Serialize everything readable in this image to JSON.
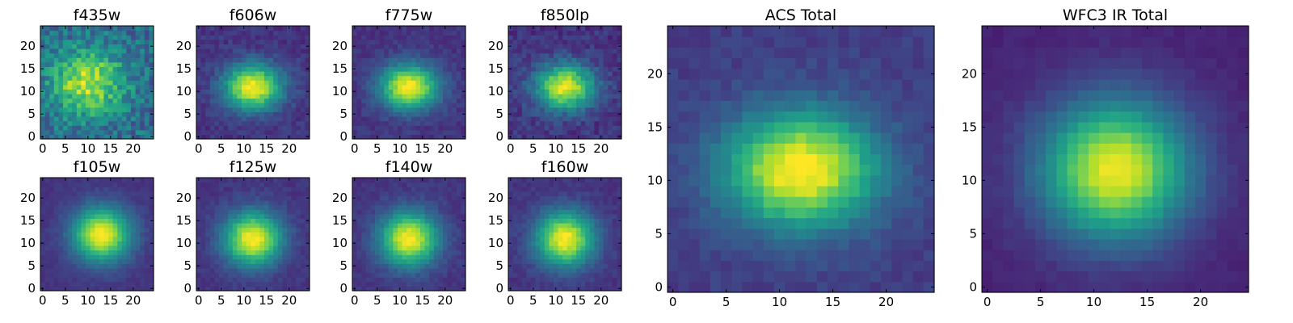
{
  "colormap": "viridis",
  "chart_data": [
    {
      "type": "heatmap",
      "title": "f435w",
      "grid_size": [
        25,
        25
      ],
      "peak": [
        10,
        12
      ],
      "sigma": [
        5.5,
        5.0
      ],
      "peak_value": 0.55,
      "background": 0.35,
      "noise": 0.3,
      "xlim": [
        0,
        24
      ],
      "ylim": [
        0,
        24
      ],
      "xticks": [
        "0",
        "5",
        "10",
        "15",
        "20"
      ],
      "yticks": [
        "0",
        "5",
        "10",
        "15",
        "20"
      ],
      "grid": false,
      "colors": "viridis"
    },
    {
      "type": "heatmap",
      "title": "f606w",
      "grid_size": [
        25,
        25
      ],
      "peak": [
        12,
        11
      ],
      "sigma": [
        4.5,
        3.5
      ],
      "peak_value": 0.85,
      "background": 0.15,
      "noise": 0.12,
      "xlim": [
        0,
        24
      ],
      "ylim": [
        0,
        24
      ],
      "xticks": [
        "0",
        "5",
        "10",
        "15",
        "20"
      ],
      "yticks": [
        "0",
        "5",
        "10",
        "15",
        "20"
      ],
      "grid": false,
      "colors": "viridis"
    },
    {
      "type": "heatmap",
      "title": "f775w",
      "grid_size": [
        25,
        25
      ],
      "peak": [
        12,
        11
      ],
      "sigma": [
        4.5,
        3.5
      ],
      "peak_value": 0.85,
      "background": 0.15,
      "noise": 0.1,
      "xlim": [
        0,
        24
      ],
      "ylim": [
        0,
        24
      ],
      "xticks": [
        "0",
        "5",
        "10",
        "15",
        "20"
      ],
      "yticks": [
        "0",
        "5",
        "10",
        "15",
        "20"
      ],
      "grid": false,
      "colors": "viridis"
    },
    {
      "type": "heatmap",
      "title": "f850lp",
      "grid_size": [
        25,
        25
      ],
      "peak": [
        12,
        11
      ],
      "sigma": [
        4.5,
        3.5
      ],
      "peak_value": 0.82,
      "background": 0.15,
      "noise": 0.15,
      "xlim": [
        0,
        24
      ],
      "ylim": [
        0,
        24
      ],
      "xticks": [
        "0",
        "5",
        "10",
        "15",
        "20"
      ],
      "yticks": [
        "0",
        "5",
        "10",
        "15",
        "20"
      ],
      "grid": false,
      "colors": "viridis"
    },
    {
      "type": "heatmap",
      "title": "f105w",
      "grid_size": [
        25,
        25
      ],
      "peak": [
        13,
        12
      ],
      "sigma": [
        4.5,
        4.2
      ],
      "peak_value": 0.85,
      "background": 0.15,
      "noise": 0.06,
      "xlim": [
        0,
        24
      ],
      "ylim": [
        0,
        24
      ],
      "xticks": [
        "0",
        "5",
        "10",
        "15",
        "20"
      ],
      "yticks": [
        "0",
        "5",
        "10",
        "15",
        "20"
      ],
      "grid": false,
      "colors": "viridis"
    },
    {
      "type": "heatmap",
      "title": "f125w",
      "grid_size": [
        25,
        25
      ],
      "peak": [
        12,
        11
      ],
      "sigma": [
        4.5,
        4.2
      ],
      "peak_value": 0.85,
      "background": 0.15,
      "noise": 0.08,
      "xlim": [
        0,
        24
      ],
      "ylim": [
        0,
        24
      ],
      "xticks": [
        "0",
        "5",
        "10",
        "15",
        "20"
      ],
      "yticks": [
        "0",
        "5",
        "10",
        "15",
        "20"
      ],
      "grid": false,
      "colors": "viridis"
    },
    {
      "type": "heatmap",
      "title": "f140w",
      "grid_size": [
        25,
        25
      ],
      "peak": [
        12,
        11
      ],
      "sigma": [
        4.5,
        4.2
      ],
      "peak_value": 0.85,
      "background": 0.15,
      "noise": 0.08,
      "xlim": [
        0,
        24
      ],
      "ylim": [
        0,
        24
      ],
      "xticks": [
        "0",
        "5",
        "10",
        "15",
        "20"
      ],
      "yticks": [
        "0",
        "5",
        "10",
        "15",
        "20"
      ],
      "grid": false,
      "colors": "viridis"
    },
    {
      "type": "heatmap",
      "title": "f160w",
      "grid_size": [
        25,
        25
      ],
      "peak": [
        12,
        11
      ],
      "sigma": [
        4.5,
        4.2
      ],
      "peak_value": 0.85,
      "background": 0.15,
      "noise": 0.08,
      "xlim": [
        0,
        24
      ],
      "ylim": [
        0,
        24
      ],
      "xticks": [
        "0",
        "5",
        "10",
        "15",
        "20"
      ],
      "yticks": [
        "0",
        "5",
        "10",
        "15",
        "20"
      ],
      "grid": false,
      "colors": "viridis"
    },
    {
      "type": "heatmap",
      "title": "ACS Total",
      "grid_size": [
        25,
        25
      ],
      "peak": [
        12,
        11
      ],
      "sigma": [
        5.0,
        3.8
      ],
      "peak_value": 0.85,
      "background": 0.18,
      "noise": 0.08,
      "xlim": [
        0,
        24
      ],
      "ylim": [
        0,
        24
      ],
      "xticks": [
        "0",
        "5",
        "10",
        "15",
        "20"
      ],
      "yticks": [
        "0",
        "5",
        "10",
        "15",
        "20"
      ],
      "grid": false,
      "colors": "viridis"
    },
    {
      "type": "heatmap",
      "title": "WFC3 IR Total",
      "grid_size": [
        25,
        25
      ],
      "peak": [
        12,
        11
      ],
      "sigma": [
        4.8,
        4.5
      ],
      "peak_value": 0.88,
      "background": 0.1,
      "noise": 0.04,
      "xlim": [
        0,
        24
      ],
      "ylim": [
        0,
        24
      ],
      "xticks": [
        "0",
        "5",
        "10",
        "15",
        "20"
      ],
      "yticks": [
        "0",
        "5",
        "10",
        "15",
        "20"
      ],
      "grid": false,
      "colors": "viridis"
    }
  ]
}
